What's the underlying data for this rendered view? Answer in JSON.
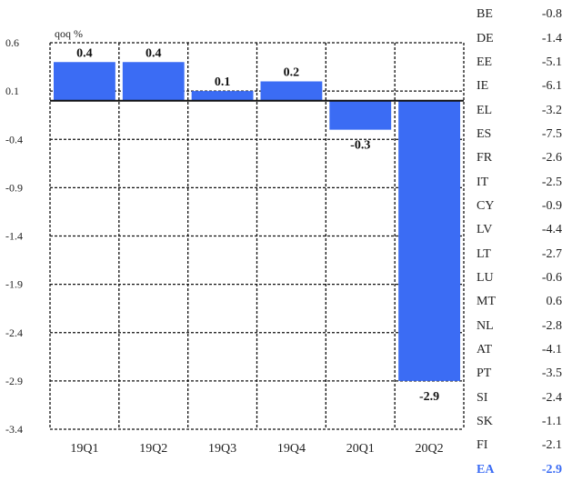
{
  "chart_data": {
    "type": "bar",
    "unit_label": "qoq %",
    "categories": [
      "19Q1",
      "19Q2",
      "19Q3",
      "19Q4",
      "20Q1",
      "20Q2"
    ],
    "values": [
      0.4,
      0.4,
      0.1,
      0.2,
      -0.3,
      -2.9
    ],
    "data_labels": [
      "0.4",
      "0.4",
      "0.1",
      "0.2",
      "-0.3",
      "-2.9"
    ],
    "ylim": [
      -3.4,
      0.6
    ],
    "yticks": [
      0.6,
      0.1,
      -0.4,
      -0.9,
      -1.4,
      -1.9,
      -2.4,
      -2.9,
      -3.4
    ],
    "ytick_labels": [
      "0.6",
      "0.1",
      "-0.4",
      "-0.9",
      "-1.4",
      "-1.9",
      "-2.4",
      "-2.9",
      "-3.4"
    ],
    "grid": true,
    "bar_color": "#3b6cf4"
  },
  "country_table": {
    "rows": [
      {
        "country": "BE",
        "value": "-0.8"
      },
      {
        "country": "DE",
        "value": "-1.4"
      },
      {
        "country": "EE",
        "value": "-5.1"
      },
      {
        "country": "IE",
        "value": "-6.1"
      },
      {
        "country": "EL",
        "value": "-3.2"
      },
      {
        "country": "ES",
        "value": "-7.5"
      },
      {
        "country": "FR",
        "value": "-2.6"
      },
      {
        "country": "IT",
        "value": "-2.5"
      },
      {
        "country": "CY",
        "value": "-0.9"
      },
      {
        "country": "LV",
        "value": "-4.4"
      },
      {
        "country": "LT",
        "value": "-2.7"
      },
      {
        "country": "LU",
        "value": "-0.6"
      },
      {
        "country": "MT",
        "value": "0.6"
      },
      {
        "country": "NL",
        "value": "-2.8"
      },
      {
        "country": "AT",
        "value": "-4.1"
      },
      {
        "country": "PT",
        "value": "-3.5"
      },
      {
        "country": "SI",
        "value": "-2.4"
      },
      {
        "country": "SK",
        "value": "-1.1"
      },
      {
        "country": "FI",
        "value": "-2.1"
      },
      {
        "country": "EA",
        "value": "-2.9",
        "highlight": true
      }
    ],
    "highlight_color": "#3b6cf4"
  }
}
